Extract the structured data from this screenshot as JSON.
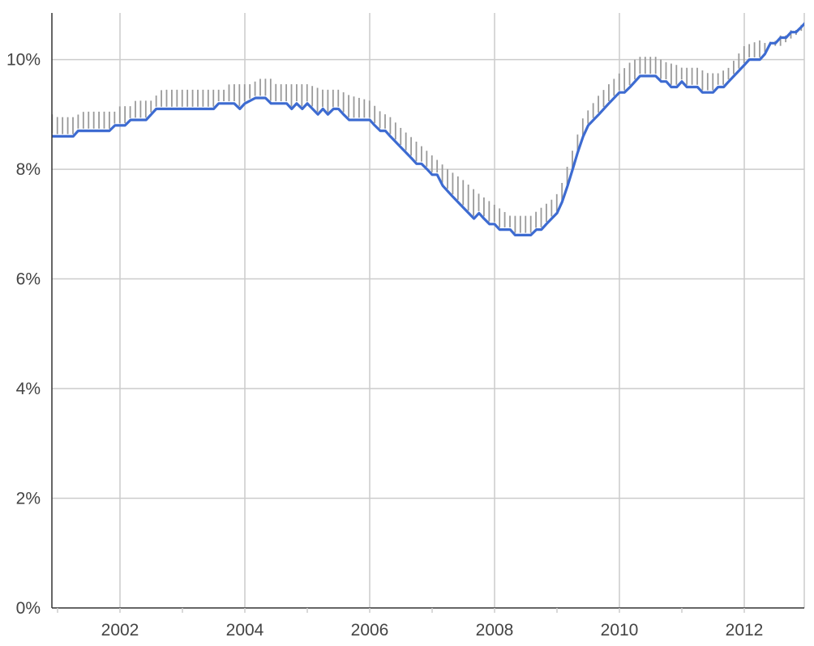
{
  "chart_data": {
    "type": "line",
    "title": "",
    "xlabel": "",
    "ylabel": "",
    "x_ticks": [
      {
        "value": 2002,
        "label": "2002"
      },
      {
        "value": 2004,
        "label": "2004"
      },
      {
        "value": 2006,
        "label": "2006"
      },
      {
        "value": 2008,
        "label": "2008"
      },
      {
        "value": 2010,
        "label": "2010"
      },
      {
        "value": 2012,
        "label": "2012"
      }
    ],
    "x_minor_ticks": [
      2001,
      2003,
      2005,
      2007,
      2009,
      2011
    ],
    "y_ticks": [
      {
        "value": 0,
        "label": "0%"
      },
      {
        "value": 2,
        "label": "2%"
      },
      {
        "value": 4,
        "label": "4%"
      },
      {
        "value": 6,
        "label": "6%"
      },
      {
        "value": 8,
        "label": "8%"
      },
      {
        "value": 10,
        "label": "10%"
      }
    ],
    "xlim": [
      2000.83,
      2012.92
    ],
    "ylim": [
      0,
      10.85
    ],
    "grid": true,
    "colors": {
      "line": "#3d6bd1",
      "whisker": "#9a9a9a",
      "grid": "#cccccc",
      "axis": "#333333"
    },
    "series": [
      {
        "role": "line",
        "points": [
          [
            2000.83,
            8.7
          ],
          [
            2000.92,
            8.6
          ],
          [
            2001.0,
            8.6
          ],
          [
            2001.25,
            8.6
          ],
          [
            2001.33,
            8.7
          ],
          [
            2001.83,
            8.7
          ],
          [
            2001.92,
            8.8
          ],
          [
            2002.0,
            8.8
          ],
          [
            2002.08,
            8.8
          ],
          [
            2002.17,
            8.9
          ],
          [
            2002.33,
            8.9
          ],
          [
            2002.42,
            8.9
          ],
          [
            2002.5,
            9.0
          ],
          [
            2002.58,
            9.1
          ],
          [
            2003.5,
            9.1
          ],
          [
            2003.58,
            9.2
          ],
          [
            2003.83,
            9.2
          ],
          [
            2003.92,
            9.1
          ],
          [
            2004.0,
            9.2
          ],
          [
            2004.17,
            9.3
          ],
          [
            2004.33,
            9.3
          ],
          [
            2004.42,
            9.2
          ],
          [
            2004.67,
            9.2
          ],
          [
            2004.75,
            9.1
          ],
          [
            2004.83,
            9.2
          ],
          [
            2004.92,
            9.1
          ],
          [
            2005.0,
            9.2
          ],
          [
            2005.17,
            9.0
          ],
          [
            2005.25,
            9.1
          ],
          [
            2005.33,
            9.0
          ],
          [
            2005.42,
            9.1
          ],
          [
            2005.5,
            9.1
          ],
          [
            2005.58,
            9.0
          ],
          [
            2005.67,
            8.9
          ],
          [
            2005.75,
            8.9
          ],
          [
            2006.0,
            8.9
          ],
          [
            2006.08,
            8.8
          ],
          [
            2006.17,
            8.7
          ],
          [
            2006.25,
            8.7
          ],
          [
            2006.33,
            8.6
          ],
          [
            2006.5,
            8.4
          ],
          [
            2006.67,
            8.2
          ],
          [
            2006.75,
            8.1
          ],
          [
            2006.83,
            8.1
          ],
          [
            2006.92,
            8.0
          ],
          [
            2007.0,
            7.9
          ],
          [
            2007.08,
            7.9
          ],
          [
            2007.17,
            7.7
          ],
          [
            2007.33,
            7.5
          ],
          [
            2007.5,
            7.3
          ],
          [
            2007.67,
            7.1
          ],
          [
            2007.75,
            7.2
          ],
          [
            2007.83,
            7.1
          ],
          [
            2007.92,
            7.0
          ],
          [
            2008.0,
            7.0
          ],
          [
            2008.08,
            6.9
          ],
          [
            2008.17,
            6.9
          ],
          [
            2008.25,
            6.9
          ],
          [
            2008.33,
            6.8
          ],
          [
            2008.5,
            6.8
          ],
          [
            2008.58,
            6.8
          ],
          [
            2008.67,
            6.9
          ],
          [
            2008.75,
            6.9
          ],
          [
            2008.83,
            7.0
          ],
          [
            2009.0,
            7.2
          ],
          [
            2009.08,
            7.4
          ],
          [
            2009.17,
            7.7
          ],
          [
            2009.25,
            8.0
          ],
          [
            2009.33,
            8.3
          ],
          [
            2009.42,
            8.6
          ],
          [
            2009.5,
            8.8
          ],
          [
            2009.67,
            9.0
          ],
          [
            2009.83,
            9.2
          ],
          [
            2010.0,
            9.4
          ],
          [
            2010.08,
            9.4
          ],
          [
            2010.17,
            9.5
          ],
          [
            2010.33,
            9.7
          ],
          [
            2010.42,
            9.7
          ],
          [
            2010.58,
            9.7
          ],
          [
            2010.67,
            9.6
          ],
          [
            2010.75,
            9.6
          ],
          [
            2010.83,
            9.5
          ],
          [
            2010.92,
            9.5
          ],
          [
            2011.0,
            9.6
          ],
          [
            2011.08,
            9.5
          ],
          [
            2011.25,
            9.5
          ],
          [
            2011.33,
            9.4
          ],
          [
            2011.5,
            9.4
          ],
          [
            2011.58,
            9.5
          ],
          [
            2011.67,
            9.5
          ],
          [
            2011.75,
            9.6
          ],
          [
            2012.0,
            9.9
          ],
          [
            2012.08,
            10.0
          ],
          [
            2012.25,
            10.0
          ],
          [
            2012.33,
            10.1
          ],
          [
            2012.42,
            10.3
          ],
          [
            2012.5,
            10.3
          ],
          [
            2012.58,
            10.4
          ],
          [
            2012.67,
            10.4
          ],
          [
            2012.75,
            10.5
          ],
          [
            2012.83,
            10.5
          ],
          [
            2012.92,
            10.6
          ],
          [
            2013.0,
            10.7
          ],
          [
            2013.08,
            10.7
          ],
          [
            2013.17,
            10.8
          ]
        ]
      },
      {
        "role": "whiskers",
        "points": [
          [
            2000.83,
            9.05
          ],
          [
            2001.0,
            8.95
          ],
          [
            2001.25,
            8.95
          ],
          [
            2001.42,
            9.05
          ],
          [
            2001.92,
            9.05
          ],
          [
            2002.0,
            9.15
          ],
          [
            2002.17,
            9.15
          ],
          [
            2002.25,
            9.25
          ],
          [
            2002.5,
            9.25
          ],
          [
            2002.67,
            9.45
          ],
          [
            2003.67,
            9.45
          ],
          [
            2003.75,
            9.55
          ],
          [
            2004.08,
            9.55
          ],
          [
            2004.25,
            9.65
          ],
          [
            2004.42,
            9.65
          ],
          [
            2004.5,
            9.55
          ],
          [
            2004.83,
            9.55
          ],
          [
            2005.0,
            9.55
          ],
          [
            2005.25,
            9.45
          ],
          [
            2005.5,
            9.45
          ],
          [
            2005.67,
            9.35
          ],
          [
            2006.0,
            9.25
          ],
          [
            2006.17,
            9.05
          ],
          [
            2006.33,
            8.95
          ],
          [
            2006.5,
            8.75
          ],
          [
            2006.75,
            8.5
          ],
          [
            2007.0,
            8.25
          ],
          [
            2007.25,
            8.0
          ],
          [
            2007.5,
            7.8
          ],
          [
            2007.75,
            7.55
          ],
          [
            2008.0,
            7.35
          ],
          [
            2008.25,
            7.15
          ],
          [
            2008.58,
            7.15
          ],
          [
            2008.75,
            7.3
          ],
          [
            2008.92,
            7.45
          ],
          [
            2009.0,
            7.55
          ],
          [
            2009.08,
            7.75
          ],
          [
            2009.25,
            8.35
          ],
          [
            2009.42,
            8.95
          ],
          [
            2009.67,
            9.35
          ],
          [
            2009.83,
            9.55
          ],
          [
            2010.0,
            9.75
          ],
          [
            2010.17,
            9.95
          ],
          [
            2010.33,
            10.05
          ],
          [
            2010.58,
            10.05
          ],
          [
            2010.75,
            9.95
          ],
          [
            2010.92,
            9.9
          ],
          [
            2011.0,
            9.85
          ],
          [
            2011.25,
            9.85
          ],
          [
            2011.42,
            9.75
          ],
          [
            2011.58,
            9.75
          ],
          [
            2011.75,
            9.85
          ],
          [
            2012.0,
            10.25
          ],
          [
            2012.25,
            10.35
          ],
          [
            2012.42,
            10.25
          ],
          [
            2012.58,
            10.25
          ],
          [
            2012.83,
            10.45
          ],
          [
            2013.17,
            10.75
          ]
        ],
        "low_offset": 0.04
      }
    ]
  }
}
